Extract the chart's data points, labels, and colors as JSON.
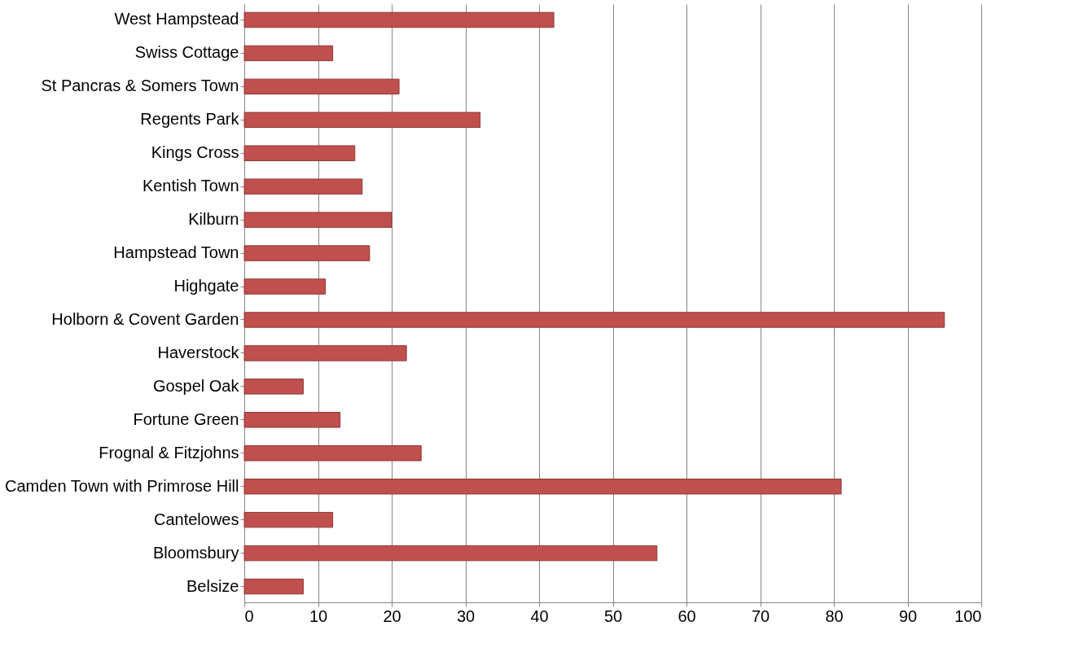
{
  "chart_data": {
    "type": "bar",
    "orientation": "horizontal",
    "categories": [
      "West Hampstead",
      "Swiss Cottage",
      "St Pancras & Somers Town",
      "Regents Park",
      "Kings Cross",
      "Kentish Town",
      "Kilburn",
      "Hampstead Town",
      "Highgate",
      "Holborn & Covent Garden",
      "Haverstock",
      "Gospel Oak",
      "Fortune Green",
      "Frognal & Fitzjohns",
      "Camden Town with Primrose Hill",
      "Cantelowes",
      "Bloomsbury",
      "Belsize"
    ],
    "values": [
      42,
      12,
      21,
      32,
      15,
      16,
      20,
      17,
      11,
      95,
      22,
      8,
      13,
      24,
      81,
      12,
      56,
      8
    ],
    "color": "#c0504d",
    "xlim": [
      0,
      100
    ],
    "xticks": [
      0,
      10,
      20,
      30,
      40,
      50,
      60,
      70,
      80,
      90,
      100
    ],
    "grid": "x"
  }
}
